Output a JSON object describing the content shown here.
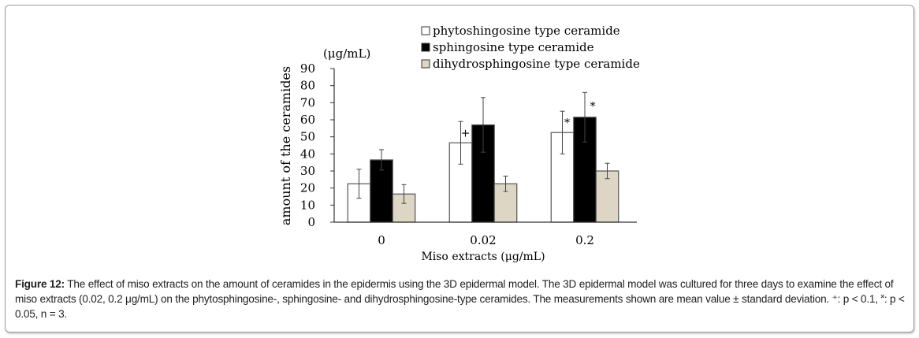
{
  "chart_data": {
    "type": "bar",
    "title": "",
    "xlabel": "Miso extracts  (μg/mL)",
    "ylabel": "amount of the ceramides",
    "yunit": "(μg/mL)",
    "ylim": [
      0,
      90
    ],
    "yticks": [
      0,
      10,
      20,
      30,
      40,
      50,
      60,
      70,
      80,
      90
    ],
    "categories": [
      "0",
      "0.02",
      "0.2"
    ],
    "legend_position": "top-right",
    "series": [
      {
        "name": "phytoshingosine type ceramide",
        "color": "#ffffff",
        "values": [
          22.5,
          46.5,
          52.5
        ],
        "errors": [
          8.5,
          12.5,
          12.5
        ],
        "markers": [
          "",
          "+",
          "*"
        ]
      },
      {
        "name": "sphingosine type ceramide",
        "color": "#000000",
        "values": [
          36.5,
          57,
          61.5
        ],
        "errors": [
          6,
          16,
          14.5
        ],
        "markers": [
          "",
          "",
          "*"
        ]
      },
      {
        "name": "dihydrosphingosine type ceramide",
        "color": "#ddd6c4",
        "values": [
          16.5,
          22.5,
          30
        ],
        "errors": [
          5.5,
          4.5,
          4.5
        ],
        "markers": [
          "",
          "",
          ""
        ]
      }
    ]
  },
  "caption": {
    "label": "Figure 12:",
    "text": " The effect of miso extracts on the amount of ceramides in the epidermis using the 3D epidermal model. The 3D epidermal model was cultured for three days to examine the effect of miso extracts (0.02, 0.2 μg/mL) on the phytosphingosine-, sphingosine- and dihydrosphingosine-type ceramides. The measurements shown are mean value ± standard deviation. ⁺: p < 0.1, ˟: p < 0.05, n = 3."
  }
}
